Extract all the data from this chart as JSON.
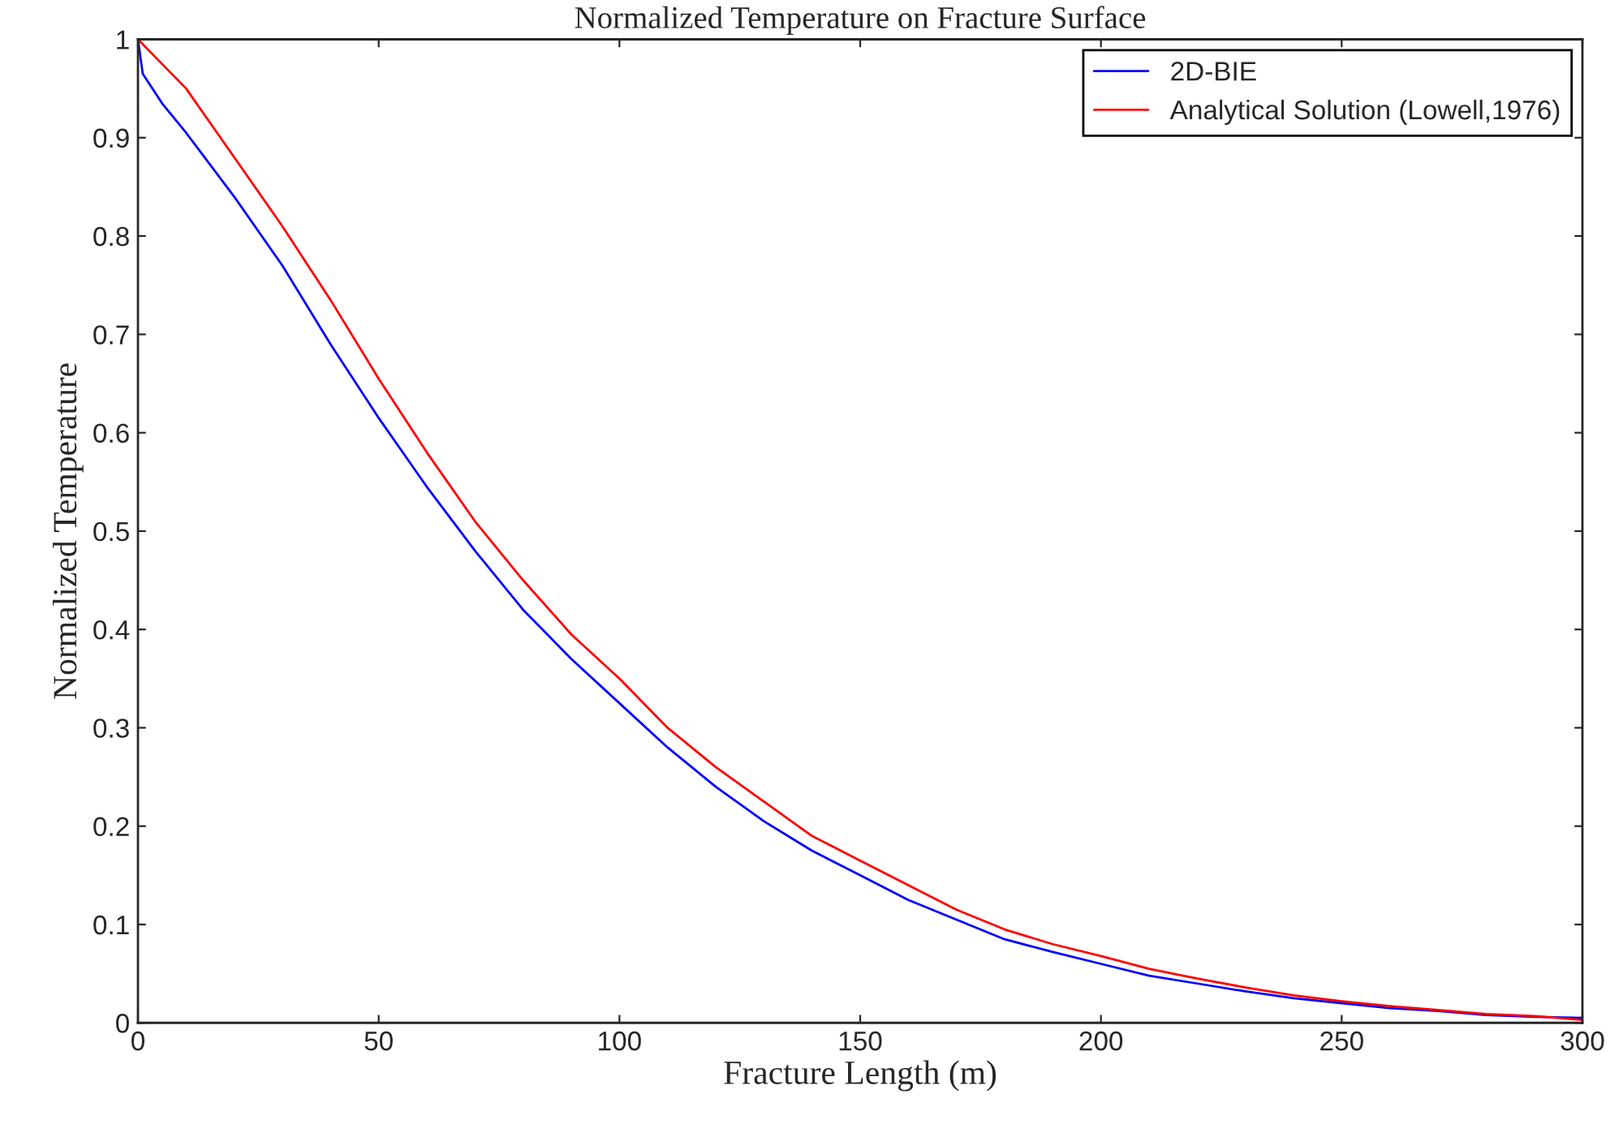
{
  "chart_data": {
    "type": "line",
    "title": "Normalized Temperature on Fracture Surface",
    "xlabel": "Fracture Length (m)",
    "ylabel": "Normalized Temperature",
    "series": [
      {
        "name": "2D-BIE",
        "color": "#0000ff",
        "x": [
          0,
          1,
          5,
          10,
          20,
          30,
          40,
          50,
          60,
          70,
          80,
          90,
          100,
          110,
          120,
          130,
          140,
          150,
          160,
          170,
          180,
          190,
          200,
          210,
          220,
          230,
          240,
          250,
          260,
          270,
          280,
          290,
          300
        ],
        "values": [
          1.0,
          0.965,
          0.935,
          0.905,
          0.84,
          0.77,
          0.69,
          0.615,
          0.545,
          0.48,
          0.42,
          0.37,
          0.325,
          0.28,
          0.24,
          0.205,
          0.175,
          0.15,
          0.125,
          0.105,
          0.085,
          0.072,
          0.06,
          0.048,
          0.04,
          0.032,
          0.025,
          0.02,
          0.015,
          0.012,
          0.008,
          0.006,
          0.005
        ]
      },
      {
        "name": "Analytical Solution (Lowell,1976)",
        "color": "#ff0000",
        "x": [
          0,
          10,
          20,
          30,
          40,
          50,
          60,
          70,
          80,
          90,
          100,
          110,
          120,
          130,
          140,
          150,
          160,
          170,
          180,
          190,
          200,
          210,
          220,
          230,
          240,
          250,
          260,
          270,
          280,
          290,
          300
        ],
        "values": [
          1.0,
          0.95,
          0.88,
          0.81,
          0.735,
          0.655,
          0.58,
          0.51,
          0.45,
          0.395,
          0.35,
          0.3,
          0.26,
          0.225,
          0.19,
          0.165,
          0.14,
          0.115,
          0.095,
          0.08,
          0.068,
          0.055,
          0.045,
          0.036,
          0.028,
          0.022,
          0.017,
          0.013,
          0.009,
          0.007,
          0.003
        ]
      }
    ],
    "xlim": [
      0,
      300
    ],
    "ylim": [
      0,
      1
    ],
    "xticks": [
      0,
      50,
      100,
      150,
      200,
      250,
      300
    ],
    "yticks": [
      0,
      0.1,
      0.2,
      0.3,
      0.4,
      0.5,
      0.6,
      0.7,
      0.8,
      0.9,
      1
    ],
    "legend": "top right",
    "grid": false,
    "marker": "none",
    "line_style": "solid"
  }
}
